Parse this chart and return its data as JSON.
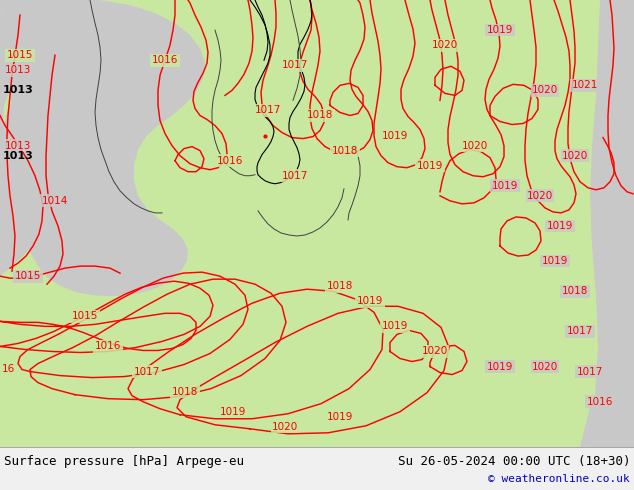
{
  "title_left": "Surface pressure [hPa] Arpege-eu",
  "title_right": "Su 26-05-2024 00:00 UTC (18+30)",
  "copyright": "© weatheronline.co.uk",
  "bg_map_color": "#d8d8d8",
  "land_green": "#b8e090",
  "land_green2": "#c8e8a0",
  "gray_sea": "#c8c8c8",
  "contour_color": "#ff0000",
  "border_color": "#404040",
  "bottom_bar_color": "#f0f0f0",
  "bottom_text_color": "#000000",
  "copyright_color": "#0000cc",
  "fig_width": 6.34,
  "fig_height": 4.9,
  "dpi": 100
}
